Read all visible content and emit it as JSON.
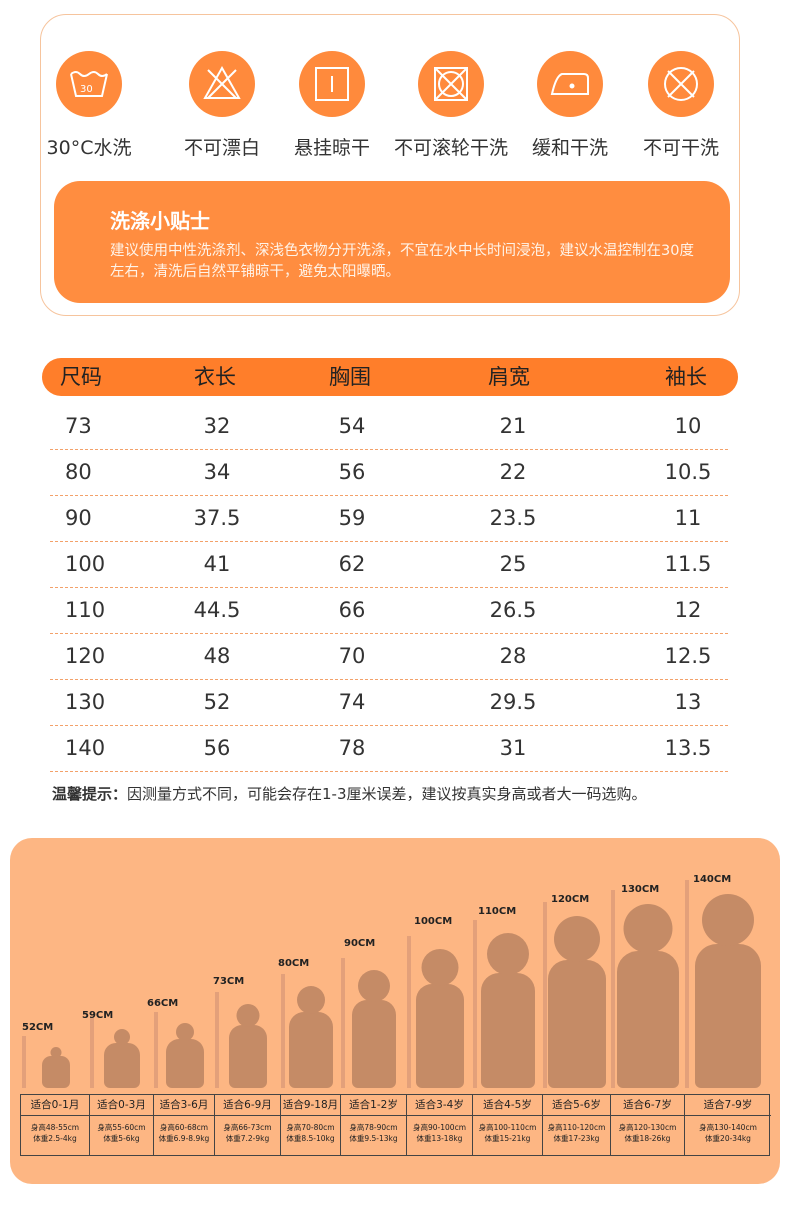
{
  "care": {
    "icons": [
      {
        "icon": "wash-30-icon",
        "label": "30°C水洗"
      },
      {
        "icon": "no-bleach-icon",
        "label": "不可漂白"
      },
      {
        "icon": "hang-dry-icon",
        "label": "悬挂晾干"
      },
      {
        "icon": "no-tumble-dry-icon",
        "label": "不可滚轮干洗"
      },
      {
        "icon": "iron-icon",
        "label": "缓和干洗"
      },
      {
        "icon": "no-dry-clean-icon",
        "label": "不可干洗"
      }
    ],
    "tips": {
      "title": "洗涤小贴士",
      "text": "建议使用中性洗涤剂、深浅色衣物分开洗涤，不宜在水中长时间浸泡，建议水温控制在30度左右，清洗后自然平铺晾干，避免太阳曝晒。"
    }
  },
  "size_table": {
    "headers": [
      "尺码",
      "衣长",
      "胸围",
      "肩宽",
      "袖长"
    ],
    "rows": [
      [
        "73",
        "32",
        "54",
        "21",
        "10"
      ],
      [
        "80",
        "34",
        "56",
        "22",
        "10.5"
      ],
      [
        "90",
        "37.5",
        "59",
        "23.5",
        "11"
      ],
      [
        "100",
        "41",
        "62",
        "25",
        "11.5"
      ],
      [
        "110",
        "44.5",
        "66",
        "26.5",
        "12"
      ],
      [
        "120",
        "48",
        "70",
        "28",
        "12.5"
      ],
      [
        "130",
        "52",
        "74",
        "29.5",
        "13"
      ],
      [
        "140",
        "56",
        "78",
        "31",
        "13.5"
      ]
    ]
  },
  "notice": {
    "label": "温馨提示：",
    "text": "因测量方式不同，可能会存在1-3厘米误差，建议按真实身高或者大一码选购。"
  },
  "growth": {
    "heights": [
      "52CM",
      "59CM",
      "66CM",
      "73CM",
      "80CM",
      "90CM",
      "100CM",
      "110CM",
      "120CM",
      "130CM",
      "140CM"
    ],
    "ages": [
      "适合0-1月",
      "适合0-3月",
      "适合3-6月",
      "适合6-9月",
      "适合9-18月",
      "适合1-2岁",
      "适合3-4岁",
      "适合4-5岁",
      "适合5-6岁",
      "适合6-7岁",
      "适合7-9岁"
    ],
    "body_heights": [
      "身高48-55cm",
      "身高55-60cm",
      "身高60-68cm",
      "身高66-73cm",
      "身高70-80cm",
      "身高78-90cm",
      "身高90-100cm",
      "身高100-110cm",
      "身高110-120cm",
      "身高120-130cm",
      "身高130-140cm"
    ],
    "weights": [
      "体重2.5-4kg",
      "体重5-6kg",
      "体重6.9-8.9kg",
      "体重7.2-9kg",
      "体重8.5-10kg",
      "体重9.5-13kg",
      "体重13-18kg",
      "体重15-21kg",
      "体重17-23kg",
      "体重18-26kg",
      "体重20-34kg"
    ]
  },
  "colors": {
    "accent": "#ff8a3c",
    "header_bar": "#ff7e2a",
    "growth_bg": "#fdb683",
    "silhouette": "#c58b66"
  }
}
